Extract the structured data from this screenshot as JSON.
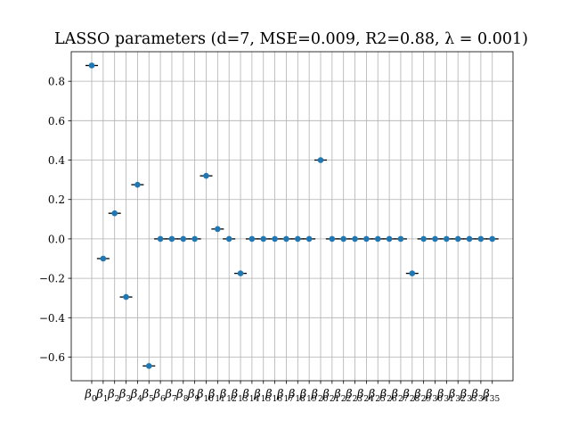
{
  "chart_data": {
    "type": "scatter",
    "title": "LASSO parameters (d=7, MSE=0.009, R2=0.88, λ = 0.001)",
    "xlabel": "",
    "ylabel": "",
    "categories": [
      "β0",
      "β1",
      "β2",
      "β3",
      "β4",
      "β5",
      "β6",
      "β7",
      "β8",
      "β9",
      "β10",
      "β11",
      "β12",
      "β13",
      "β14",
      "β15",
      "β16",
      "β17",
      "β18",
      "β19",
      "β20",
      "β21",
      "β22",
      "β23",
      "β24",
      "β25",
      "β26",
      "β27",
      "β28",
      "β29",
      "β30",
      "β31",
      "β32",
      "β33",
      "β34",
      "β35"
    ],
    "values": [
      0.88,
      -0.1,
      0.13,
      -0.295,
      0.275,
      -0.645,
      0,
      0,
      0,
      0,
      0.32,
      0.05,
      0,
      -0.175,
      0,
      0,
      0,
      0,
      0,
      0,
      0.4,
      0,
      0,
      0,
      0,
      0,
      0,
      0,
      -0.175,
      0,
      0,
      0,
      0,
      0,
      0,
      0
    ],
    "ylim": [
      -0.72,
      0.95
    ],
    "yticks": [
      -0.6,
      -0.4,
      -0.2,
      0.0,
      0.2,
      0.4,
      0.6,
      0.8
    ],
    "ytick_labels": [
      "−0.6",
      "−0.4",
      "−0.2",
      "0.0",
      "0.2",
      "0.4",
      "0.6",
      "0.8"
    ],
    "grid": true,
    "marker_color": "#1f77b4",
    "errorbar_color": "#000000"
  }
}
